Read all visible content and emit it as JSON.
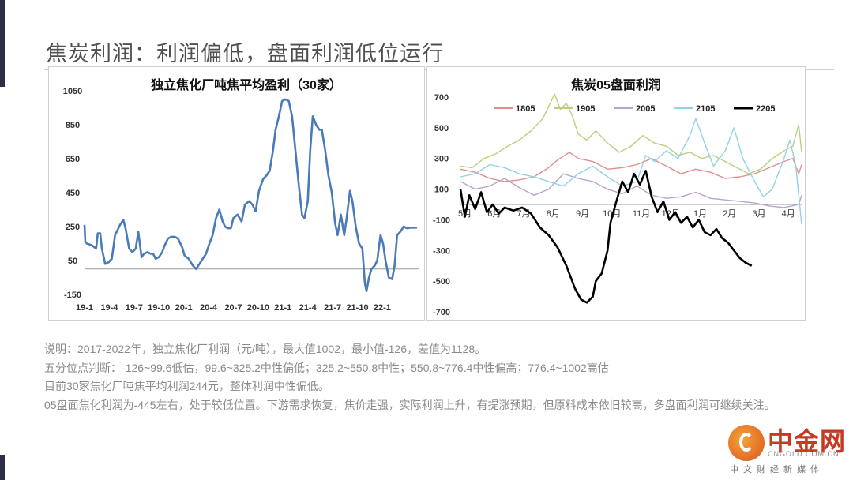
{
  "slide": {
    "title": "焦炭利润：利润偏低，盘面利润低位运行"
  },
  "notes": [
    "说明：2017-2022年，独立焦化厂利润（元/吨），最大值1002，最小值-126，差值为1128。",
    "五分位点判断：-126~99.6低估，99.6~325.2中性偏低；325.2~550.8中性；550.8~776.4中性偏高；776.4~1002高估",
    "目前30家焦化厂吨焦平均利润244元，整体利润中性偏低。",
    "05盘面焦化利润为-445左右，处于较低位置。下游需求恢复，焦价走强，实际利润上升，有提涨预期，但原料成本依旧较高，多盘面利润可继续关注。"
  ],
  "logo": {
    "name": "中金网",
    "url": "CNGOLD.COM.CN",
    "tagline": "中文财经新媒体"
  },
  "chart_data": [
    {
      "type": "line",
      "title": "独立焦化厂吨焦平均盈利（30家）",
      "ylim": [
        -150,
        1050
      ],
      "y_ticks": [
        "1050",
        "850",
        "650",
        "450",
        "250",
        "50",
        "-150"
      ],
      "x_ticks": [
        "19-1",
        "19-4",
        "19-7",
        "19-10",
        "20-1",
        "20-4",
        "20-7",
        "20-10",
        "21-1",
        "21-4",
        "21-7",
        "21-10",
        "22-1"
      ],
      "x_range": [
        0,
        40.4
      ],
      "legend": "none",
      "color": "#4a7ab8",
      "series": [
        {
          "x": [
            0,
            0.1,
            0.3,
            0.9,
            1.4,
            1.6,
            1.9,
            2.1,
            2.5,
            2.9,
            3.3,
            3.7,
            4.3,
            4.7,
            5.0,
            5.4,
            5.8,
            6.2,
            6.5,
            6.9,
            7.2,
            7.6,
            8.0,
            8.3,
            8.6,
            9.0,
            9.4,
            9.7,
            10.1,
            10.5,
            10.9,
            11.3,
            11.8,
            12.1,
            12.6,
            13.1,
            13.5,
            13.9,
            14.3,
            14.7,
            15.1,
            15.5,
            15.9,
            16.3,
            16.7,
            17.0,
            17.3,
            17.5,
            17.7,
            18.0,
            18.5,
            19.0,
            19.4,
            19.9,
            20.3,
            20.7,
            21.1,
            21.6,
            22.0,
            22.4,
            22.8,
            23.1,
            23.5,
            23.9,
            24.3,
            24.7,
            25.1,
            25.5,
            25.9,
            26.3,
            26.6,
            27.0,
            27.3,
            27.6,
            28.0,
            28.4,
            28.7,
            29.1,
            29.5,
            29.9,
            30.3,
            30.6,
            31.0,
            31.4,
            31.7,
            32.1,
            32.4,
            32.8,
            33.2,
            33.6,
            33.9,
            34.1,
            34.4,
            34.7,
            35.1,
            35.4,
            35.8,
            36.1,
            36.4,
            36.8,
            37.2,
            37.5,
            37.8,
            38.2,
            38.6,
            39.0,
            39.4,
            39.8,
            40.2
          ],
          "y": [
            260,
            160,
            150,
            140,
            120,
            210,
            210,
            120,
            30,
            40,
            60,
            200,
            260,
            290,
            230,
            120,
            100,
            120,
            220,
            70,
            90,
            100,
            90,
            90,
            60,
            70,
            100,
            140,
            180,
            190,
            190,
            180,
            130,
            80,
            60,
            20,
            0,
            30,
            60,
            90,
            150,
            200,
            300,
            350,
            280,
            250,
            240,
            240,
            240,
            300,
            320,
            280,
            380,
            400,
            380,
            340,
            460,
            530,
            550,
            580,
            700,
            820,
            900,
            990,
            1000,
            990,
            900,
            700,
            500,
            320,
            300,
            400,
            700,
            900,
            850,
            820,
            820,
            700,
            550,
            450,
            270,
            200,
            320,
            200,
            300,
            460,
            400,
            250,
            150,
            120,
            -80,
            -130,
            -50,
            0,
            20,
            50,
            200,
            150,
            50,
            -50,
            -60,
            20,
            200,
            220,
            250,
            240,
            244,
            244,
            244
          ]
        }
      ]
    },
    {
      "type": "line",
      "title": "焦炭05盘面利润",
      "ylim": [
        -700,
        700
      ],
      "y_ticks": [
        "700",
        "500",
        "300",
        "100",
        "-100",
        "-300",
        "-500",
        "-700"
      ],
      "x_ticks": [
        "5月",
        "6月",
        "7月",
        "8月",
        "9月",
        "10月",
        "11月",
        "12月",
        "1月",
        "2月",
        "3月",
        "4月"
      ],
      "x_range": [
        0,
        11.6
      ],
      "legend": "top",
      "series": [
        {
          "name": "1805",
          "color": "#e08f8f",
          "x": [
            0,
            0.5,
            1.0,
            1.5,
            2.0,
            2.5,
            3.0,
            3.3,
            3.7,
            4.0,
            4.5,
            5.0,
            5.5,
            6.0,
            6.5,
            7.0,
            7.5,
            8.0,
            8.5,
            9.0,
            9.5,
            10.0,
            10.5,
            11.0,
            11.3,
            11.5,
            11.6
          ],
          "y": [
            230,
            210,
            170,
            150,
            160,
            180,
            240,
            290,
            340,
            300,
            280,
            230,
            240,
            260,
            300,
            250,
            200,
            230,
            210,
            170,
            180,
            200,
            240,
            280,
            300,
            200,
            260
          ]
        },
        {
          "name": "1905",
          "color": "#b9d07d",
          "x": [
            0,
            0.4,
            0.8,
            1.2,
            1.6,
            2.0,
            2.4,
            2.8,
            3.0,
            3.2,
            3.4,
            3.6,
            3.8,
            4.0,
            4.3,
            4.6,
            5.0,
            5.4,
            5.8,
            6.2,
            6.6,
            7.0,
            7.4,
            7.8,
            8.2,
            8.6,
            9.0,
            9.4,
            9.8,
            10.2,
            10.6,
            11.0,
            11.3,
            11.5,
            11.6
          ],
          "y": [
            250,
            240,
            300,
            330,
            380,
            420,
            480,
            560,
            640,
            720,
            620,
            660,
            580,
            460,
            420,
            480,
            400,
            340,
            380,
            450,
            400,
            380,
            320,
            340,
            300,
            320,
            280,
            240,
            200,
            230,
            300,
            350,
            380,
            520,
            340
          ]
        },
        {
          "name": "2005",
          "color": "#b7a3cf",
          "x": [
            0,
            0.5,
            1.0,
            1.5,
            2.0,
            2.5,
            3.0,
            3.5,
            4.0,
            4.5,
            5.0,
            5.5,
            6.0,
            6.5,
            7.0,
            7.5,
            8.0,
            8.5,
            9.0,
            9.5,
            10.0,
            10.5,
            11.0,
            11.5,
            11.6
          ],
          "y": [
            150,
            100,
            120,
            170,
            110,
            60,
            100,
            200,
            170,
            150,
            100,
            70,
            120,
            60,
            40,
            50,
            80,
            40,
            30,
            20,
            10,
            -10,
            -20,
            0,
            60
          ]
        },
        {
          "name": "2105",
          "color": "#8fd3e5",
          "x": [
            0,
            0.5,
            1.0,
            1.5,
            2.0,
            2.5,
            3.0,
            3.5,
            4.0,
            4.5,
            5.0,
            5.5,
            6.0,
            6.3,
            6.6,
            7.0,
            7.4,
            7.8,
            8.0,
            8.3,
            8.6,
            9.0,
            9.3,
            9.6,
            10.0,
            10.3,
            10.6,
            11.0,
            11.2,
            11.4,
            11.6
          ],
          "y": [
            180,
            200,
            260,
            240,
            200,
            180,
            150,
            120,
            200,
            250,
            180,
            120,
            150,
            320,
            280,
            350,
            300,
            450,
            560,
            400,
            250,
            350,
            500,
            300,
            150,
            50,
            100,
            300,
            420,
            250,
            -130
          ]
        },
        {
          "name": "2205",
          "color": "#000000",
          "x": [
            0,
            0.15,
            0.3,
            0.5,
            0.7,
            0.9,
            1.1,
            1.3,
            1.5,
            1.8,
            2.1,
            2.4,
            2.7,
            3.0,
            3.3,
            3.6,
            3.9,
            4.1,
            4.3,
            4.5,
            4.6,
            4.8,
            5.0,
            5.1,
            5.3,
            5.5,
            5.7,
            5.9,
            6.1,
            6.3,
            6.5,
            6.7,
            6.9,
            7.1,
            7.3,
            7.5,
            7.7,
            7.9,
            8.1,
            8.3,
            8.5,
            8.7,
            8.9,
            9.1,
            9.3,
            9.5,
            9.7,
            9.9
          ],
          "y": [
            100,
            -80,
            60,
            -30,
            80,
            -50,
            0,
            -60,
            -20,
            -40,
            -20,
            -60,
            -150,
            -200,
            -280,
            -400,
            -550,
            -620,
            -640,
            -600,
            -500,
            -450,
            -300,
            -120,
            20,
            150,
            80,
            200,
            130,
            220,
            50,
            -50,
            20,
            -100,
            -50,
            -120,
            -80,
            -150,
            -100,
            -180,
            -200,
            -160,
            -220,
            -250,
            -300,
            -350,
            -380,
            -400
          ]
        }
      ]
    }
  ]
}
